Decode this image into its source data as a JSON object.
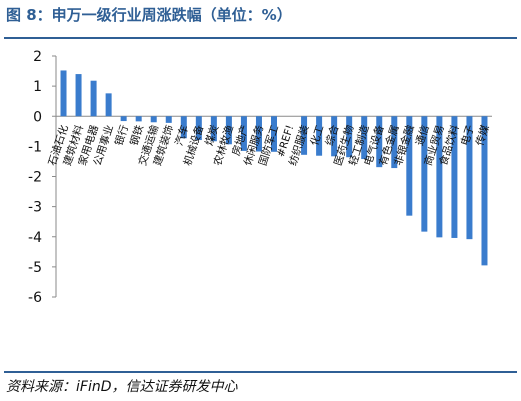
{
  "header": {
    "title": "图 8：申万一级行业周涨跌幅（单位：%）"
  },
  "footer": {
    "source": "资料来源：iFinD，信达证券研发中心"
  },
  "colors": {
    "accent": "#2f5f95",
    "bar": "#3a7ccd"
  },
  "chart_data": {
    "type": "bar",
    "title": "图 8：申万一级行业周涨跌幅（单位：%）",
    "xlabel": "",
    "ylabel": "",
    "ylim": [
      -6,
      2
    ],
    "yticks": [
      2,
      1,
      0,
      -1,
      -2,
      -3,
      -4,
      -5,
      -6
    ],
    "grid": false,
    "legend": "none",
    "categories": [
      "石油石化",
      "建筑材料",
      "家用电器",
      "公用事业",
      "银行",
      "钢铁",
      "交通运输",
      "建筑装饰",
      "汽车",
      "机械设备",
      "煤炭",
      "农林牧渔",
      "房地产",
      "休闲服务",
      "国防军工",
      "#REF!",
      "纺织服装",
      "化工",
      "综合",
      "医药生物",
      "轻工制造",
      "电气设备",
      "有色金属",
      "非银金融",
      "通信",
      "商业贸易",
      "食品饮料",
      "电子",
      "传媒"
    ],
    "values": [
      1.52,
      1.4,
      1.18,
      0.76,
      -0.16,
      -0.17,
      -0.2,
      -0.22,
      -0.73,
      -0.79,
      -0.83,
      -0.93,
      -1.15,
      -1.17,
      -1.18,
      0,
      -1.28,
      -1.31,
      -1.33,
      -1.36,
      -1.42,
      -1.69,
      -1.72,
      -3.3,
      -3.83,
      -4.02,
      -4.04,
      -4.08,
      -4.95
    ]
  }
}
